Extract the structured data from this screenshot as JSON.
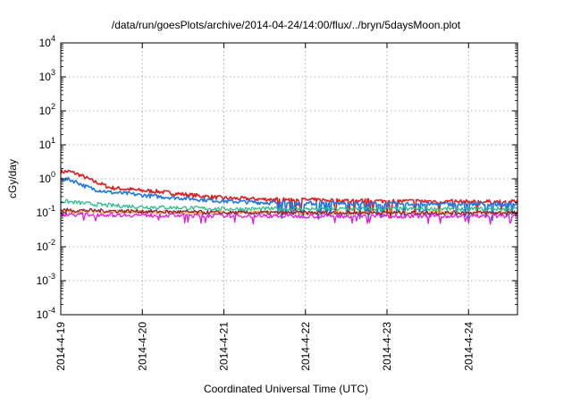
{
  "chart_data": {
    "type": "line",
    "title": "/data/run/goesPlots/archive/2014-04-24/14:00/flux/../bryn/5daysMoon.plot",
    "xlabel": "Coordinated Universal Time (UTC)",
    "ylabel": "cGy/day",
    "yscale": "log",
    "ylim": [
      0.0001,
      10000
    ],
    "xlim_days": [
      0,
      5.6
    ],
    "grid": true,
    "x_ticks": [
      {
        "label": "2014-4-19",
        "day": 0
      },
      {
        "label": "2014-4-20",
        "day": 1
      },
      {
        "label": "2014-4-21",
        "day": 2
      },
      {
        "label": "2014-4-22",
        "day": 3
      },
      {
        "label": "2014-4-23",
        "day": 4
      },
      {
        "label": "2014-4-24",
        "day": 5
      }
    ],
    "y_ticks": [
      {
        "base": "10",
        "exp": "-4",
        "value": 0.0001
      },
      {
        "base": "10",
        "exp": "-3",
        "value": 0.001
      },
      {
        "base": "10",
        "exp": "-2",
        "value": 0.01
      },
      {
        "base": "10",
        "exp": "-1",
        "value": 0.1
      },
      {
        "base": "10",
        "exp": "0",
        "value": 1
      },
      {
        "base": "10",
        "exp": "1",
        "value": 10
      },
      {
        "base": "10",
        "exp": "2",
        "value": 100
      },
      {
        "base": "10",
        "exp": "3",
        "value": 1000
      },
      {
        "base": "10",
        "exp": "4",
        "value": 10000
      }
    ],
    "series": [
      {
        "color": "#e41a1c",
        "day": [
          0,
          0.1,
          0.2,
          0.3,
          0.4,
          0.5,
          0.6,
          0.8,
          1.0,
          1.2,
          1.5,
          2.0,
          2.5,
          3.0,
          3.5,
          4.0,
          4.5,
          5.0,
          5.6
        ],
        "value": [
          1.6,
          1.65,
          1.4,
          1.1,
          0.85,
          0.7,
          0.55,
          0.5,
          0.45,
          0.42,
          0.35,
          0.27,
          0.25,
          0.24,
          0.23,
          0.22,
          0.22,
          0.21,
          0.21
        ]
      },
      {
        "color": "#1f77e6",
        "day": [
          0,
          0.1,
          0.2,
          0.3,
          0.4,
          0.5,
          0.6,
          0.8,
          1.0,
          1.2,
          1.5,
          2.0,
          2.5,
          3.0,
          3.5,
          4.0,
          4.5,
          5.0,
          5.6
        ],
        "value": [
          1.0,
          0.95,
          0.8,
          0.6,
          0.5,
          0.45,
          0.4,
          0.37,
          0.33,
          0.3,
          0.27,
          0.22,
          0.2,
          0.19,
          0.19,
          0.18,
          0.18,
          0.18,
          0.18
        ]
      },
      {
        "color": "#2ebd8a",
        "day": [
          0,
          0.2,
          0.5,
          1.0,
          1.5,
          2.0,
          3.0,
          4.0,
          5.0,
          5.6
        ],
        "value": [
          0.22,
          0.2,
          0.17,
          0.15,
          0.14,
          0.13,
          0.13,
          0.13,
          0.13,
          0.13
        ]
      },
      {
        "color": "#f2a530",
        "day": [
          0,
          0.5,
          1.0,
          2.0,
          3.0,
          4.0,
          5.0,
          5.6
        ],
        "value": [
          0.11,
          0.11,
          0.105,
          0.1,
          0.1,
          0.1,
          0.1,
          0.1
        ]
      },
      {
        "color": "#8b2040",
        "day": [
          0,
          0.5,
          1.0,
          2.0,
          3.0,
          4.0,
          5.0,
          5.6
        ],
        "value": [
          0.12,
          0.115,
          0.11,
          0.1,
          0.1,
          0.1,
          0.1,
          0.1
        ]
      },
      {
        "color": "#e41ad6",
        "day": [
          0,
          0.5,
          1.0,
          2.0,
          3.0,
          4.0,
          5.0,
          5.6
        ],
        "value": [
          0.09,
          0.088,
          0.085,
          0.082,
          0.08,
          0.08,
          0.08,
          0.08
        ]
      }
    ]
  }
}
